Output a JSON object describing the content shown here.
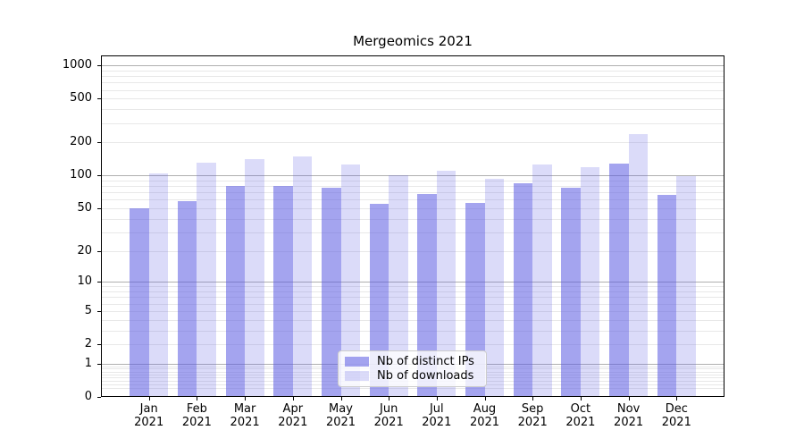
{
  "title": "Mergeomics 2021",
  "chart_data": {
    "type": "bar",
    "title": "Mergeomics 2021",
    "categories": [
      "Jan 2021",
      "Feb 2021",
      "Mar 2021",
      "Apr 2021",
      "May 2021",
      "Jun 2021",
      "Jul 2021",
      "Aug 2021",
      "Sep 2021",
      "Oct 2021",
      "Nov 2021",
      "Dec 2021"
    ],
    "series": [
      {
        "name": "Nb of distinct IPs",
        "values": [
          50,
          58,
          81,
          81,
          78,
          55,
          68,
          56,
          85,
          77,
          129,
          67
        ]
      },
      {
        "name": "Nb of downloads",
        "values": [
          105,
          131,
          142,
          150,
          126,
          100,
          110,
          93,
          127,
          120,
          238,
          99
        ]
      }
    ],
    "xlabel": "",
    "ylabel": "",
    "yscale": "log1p",
    "yticks": [
      0,
      1,
      2,
      5,
      10,
      20,
      50,
      100,
      200,
      500,
      1000
    ],
    "ylim": [
      0,
      1231
    ],
    "grid": true,
    "legend_position": "inside lower-center"
  },
  "colors": {
    "bar_distinct_ips": "rgba(90,90,226,0.55)",
    "bar_downloads": "rgba(90,90,226,0.22)",
    "grid_major": "#b0b0b0",
    "grid_minor": "#e8e8e8",
    "spine": "#000000",
    "text": "#000000",
    "legend_border": "#cccccc",
    "legend_background": "rgba(255,255,255,0.8)",
    "background": "#ffffff"
  }
}
